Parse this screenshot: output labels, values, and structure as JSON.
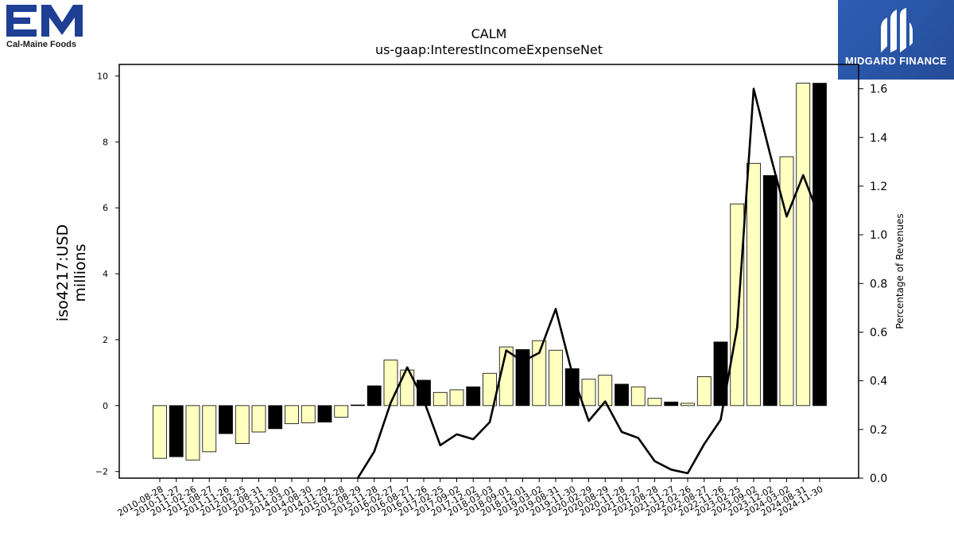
{
  "brand_left": {
    "name": "Cal-Maine Foods",
    "mark_text": "CM",
    "color": "#1e3f94"
  },
  "brand_right": {
    "name": "MIDGARD FINANCE",
    "color": "#2a56a8"
  },
  "chart_data": {
    "type": "bar",
    "title": "CALM",
    "subtitle": "us-gaap:InterestIncomeExpenseNet",
    "ylabel": "iso4217:USD\nmillions",
    "ylabel_lines": [
      "iso4217:USD",
      "millions"
    ],
    "y2label": "Percentage of Revenues",
    "ylim": [
      -2.2,
      10.35
    ],
    "y2lim": [
      0.0,
      1.7
    ],
    "yticks": [
      -2,
      0,
      2,
      4,
      6,
      8,
      10
    ],
    "y2ticks": [
      0.0,
      0.2,
      0.4,
      0.6,
      0.8,
      1.0,
      1.2,
      1.4,
      1.6
    ],
    "y2tick_labels": [
      "0.0",
      "0.2",
      "0.4",
      "0.6",
      "0.8",
      "1.0",
      "1.2",
      "1.4",
      "1.6"
    ],
    "grid": false,
    "bar_colors": {
      "annual": "#000000",
      "quarterly": "#ffffc0",
      "edge": "#000000"
    },
    "line_color": "#000000",
    "categories": [
      "2010-08-28",
      "2010-11-27",
      "2011-02-26",
      "2011-08-27",
      "2011-11-26",
      "2012-02-25",
      "2013-08-31",
      "2013-11-30",
      "2014-03-01",
      "2014-08-30",
      "2014-11-29",
      "2015-02-28",
      "2015-08-29",
      "2015-11-28",
      "2016-02-27",
      "2016-08-27",
      "2016-11-26",
      "2017-02-25",
      "2017-09-02",
      "2017-12-02",
      "2018-03-03",
      "2018-09-01",
      "2018-12-01",
      "2019-03-02",
      "2019-08-31",
      "2019-11-30",
      "2020-02-29",
      "2020-08-29",
      "2020-11-28",
      "2021-02-27",
      "2021-08-28",
      "2021-11-27",
      "2022-02-26",
      "2022-08-27",
      "2022-11-26",
      "2023-02-25",
      "2023-09-02",
      "2023-12-02",
      "2024-03-02",
      "2024-08-31",
      "2024-11-30"
    ],
    "series": [
      {
        "values": [
          -1.6,
          -1.55,
          -1.65,
          -1.4,
          -0.85,
          -1.15,
          -0.8,
          -0.7,
          -0.55,
          -0.52,
          -0.5,
          -0.35,
          0.02,
          0.6,
          1.38,
          1.08,
          0.77,
          0.4,
          0.48,
          0.57,
          0.98,
          1.78,
          1.7,
          1.97,
          1.68,
          1.12,
          0.8,
          0.92,
          0.65,
          0.57,
          0.22,
          0.11,
          0.07,
          0.88,
          1.93,
          6.12,
          7.35,
          6.98,
          7.55,
          9.78,
          9.78
        ],
        "kinds": [
          "q",
          "a",
          "q",
          "q",
          "a",
          "q",
          "q",
          "a",
          "q",
          "q",
          "a",
          "q",
          "a",
          "a",
          "q",
          "q",
          "a",
          "q",
          "q",
          "a",
          "q",
          "q",
          "a",
          "q",
          "q",
          "a",
          "q",
          "q",
          "a",
          "q",
          "q",
          "a",
          "q",
          "q",
          "a",
          "q",
          "q",
          "a",
          "q",
          "q",
          "a"
        ]
      },
      {
        "axis": "right",
        "type": "line",
        "values": [
          null,
          null,
          null,
          null,
          null,
          null,
          null,
          null,
          null,
          null,
          null,
          null,
          0.0,
          0.11,
          0.31,
          0.455,
          0.32,
          0.135,
          0.18,
          0.16,
          0.23,
          0.525,
          0.48,
          0.515,
          0.695,
          0.43,
          0.235,
          0.315,
          0.19,
          0.165,
          0.07,
          0.035,
          0.02,
          0.14,
          0.24,
          0.62,
          1.6,
          1.33,
          1.075,
          1.245,
          1.07
        ]
      }
    ]
  }
}
